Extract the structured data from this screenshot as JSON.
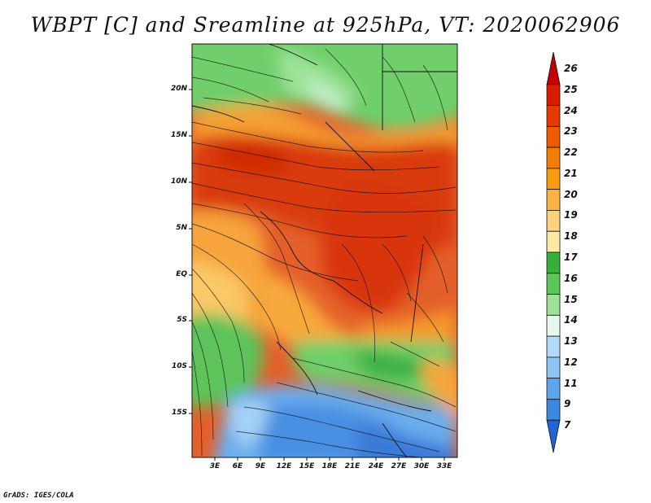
{
  "title": "WBPT [C] and Sreamline at 925hPa, VT: 2020062906",
  "credit": "GrADS: IGES/COLA",
  "lat_labels": [
    "20N",
    "15N",
    "10N",
    "5N",
    "EQ",
    "5S",
    "10S",
    "15S"
  ],
  "lon_labels": [
    "3E",
    "6E",
    "9E",
    "12E",
    "15E",
    "18E",
    "21E",
    "24E",
    "27E",
    "30E",
    "33E"
  ],
  "colorbar": {
    "labels": [
      "26",
      "25",
      "24",
      "23",
      "22",
      "21",
      "20",
      "19",
      "18",
      "17",
      "16",
      "15",
      "14",
      "13",
      "12",
      "11",
      "9",
      "7"
    ],
    "colors": [
      "#c40000",
      "#d81c00",
      "#e83a00",
      "#f05a00",
      "#f47c00",
      "#f89a10",
      "#fbb444",
      "#fdd27e",
      "#fbe9a6",
      "#36b03a",
      "#5dc85a",
      "#9ee29a",
      "#e8f8ec",
      "#b4dcfa",
      "#8cc4f4",
      "#5ea6ec",
      "#3a88e0",
      "#1e64d4"
    ]
  }
}
